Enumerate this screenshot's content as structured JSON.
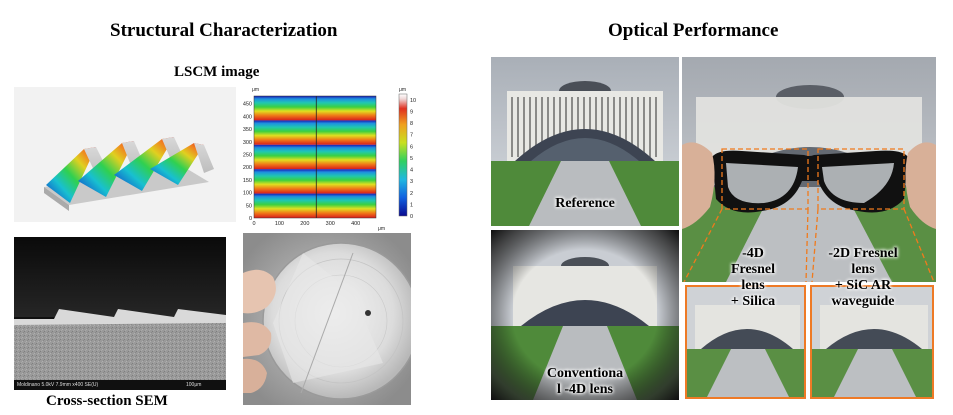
{
  "left": {
    "title": "Structural Characterization",
    "lscm_label": "LSCM image",
    "sem_label": "Cross-section SEM",
    "sem_info": "Moldinano 5.0kV 7.9mm x400 SE(U)",
    "sem_scale": "100μm"
  },
  "right": {
    "title": "Optical Performance",
    "labels": {
      "reference": "Reference",
      "conventional": "Conventiona\nl -4D lens",
      "fresnel_4d": "-4D\nFresnel\nlens\n+ Silica",
      "fresnel_2d": "-2D Fresnel\nlens\n+ SiC AR\nwaveguide"
    }
  },
  "chart_data": {
    "type": "heatmap",
    "title": "",
    "xlabel": "μm",
    "ylabel": "μm",
    "x_ticks": [
      "0",
      "100",
      "200",
      "300",
      "400"
    ],
    "y_ticks": [
      "0",
      "50",
      "100",
      "150",
      "200",
      "250",
      "300",
      "350",
      "400",
      "450"
    ],
    "xlim": [
      0,
      480
    ],
    "ylim": [
      0,
      480
    ],
    "colorbar": {
      "unit": "μm",
      "ticks": [
        "0",
        "1",
        "2",
        "3",
        "4",
        "5",
        "6",
        "7",
        "8",
        "9",
        "10"
      ],
      "range": [
        0,
        10.5
      ]
    },
    "colors": {
      "low": "#0b0bb8",
      "mid": "#22cc55",
      "high": "#d81c1c"
    }
  }
}
